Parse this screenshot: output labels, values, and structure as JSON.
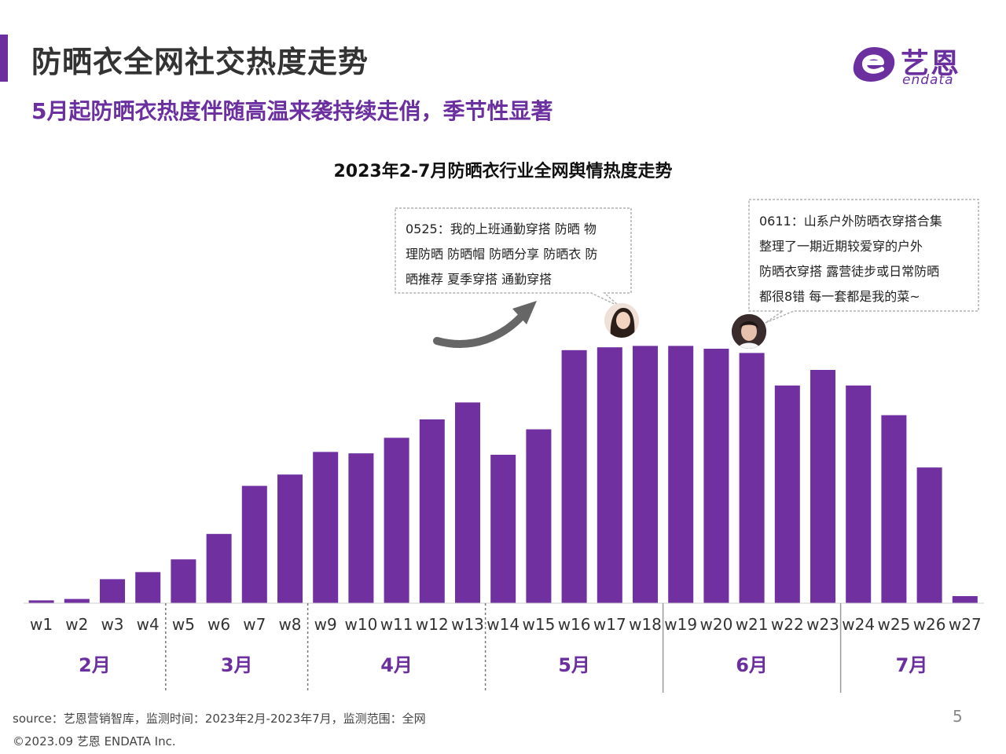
{
  "header": {
    "title": "防晒衣全网社交热度走势",
    "subtitle": "5月起防晒衣热度伴随高温来袭持续走俏，季节性显著"
  },
  "logo": {
    "cn": "艺恩",
    "en": "endata"
  },
  "callouts": [
    {
      "text": "0525：我的上班通勤穿搭 防晒 物\n理防晒 防晒帽 防晒分享 防晒衣 防\n晒推荐 夏季穿搭 通勤穿搭"
    },
    {
      "text": "0611：山系户外防晒衣穿搭合集\n整理了一期近期较爱穿的户外\n防晒衣穿搭 露营徒步或日常防晒\n都很8错  每一套都是我的菜~"
    }
  ],
  "colors": {
    "accent": "#6b2fa0",
    "bar": "#7030a0"
  },
  "chart_data": {
    "type": "bar",
    "title": "2023年2-7月防晒衣行业全网舆情热度走势",
    "categories": [
      "w1",
      "w2",
      "w3",
      "w4",
      "w5",
      "w6",
      "w7",
      "w8",
      "w9",
      "w10",
      "w11",
      "w12",
      "w13",
      "w14",
      "w15",
      "w16",
      "w17",
      "w18",
      "w19",
      "w20",
      "w21",
      "w22",
      "w23",
      "w24",
      "w25",
      "w26",
      "w27"
    ],
    "values": [
      1,
      1.5,
      8.5,
      11,
      15.5,
      24.5,
      41.5,
      45.5,
      53.5,
      53,
      58.5,
      65,
      71,
      52.5,
      61.5,
      89.5,
      90.5,
      91,
      91,
      90,
      88.5,
      77,
      82.5,
      77,
      66.5,
      48,
      2.5
    ],
    "month_groups": [
      {
        "label": "2月",
        "weeks": 4
      },
      {
        "label": "3月",
        "weeks": 4
      },
      {
        "label": "4月",
        "weeks": 5
      },
      {
        "label": "5月",
        "weeks": 5
      },
      {
        "label": "6月",
        "weeks": 5
      },
      {
        "label": "7月",
        "weeks": 4
      }
    ],
    "ylim": [
      0,
      100
    ],
    "grid": false,
    "legend": "none"
  },
  "footer": {
    "source": "source：艺恩营销智库，监测时间：2023年2月-2023年7月，监测范围：全网",
    "copyright": "©2023.09 艺恩 ENDATA Inc.",
    "page_number": "5"
  }
}
